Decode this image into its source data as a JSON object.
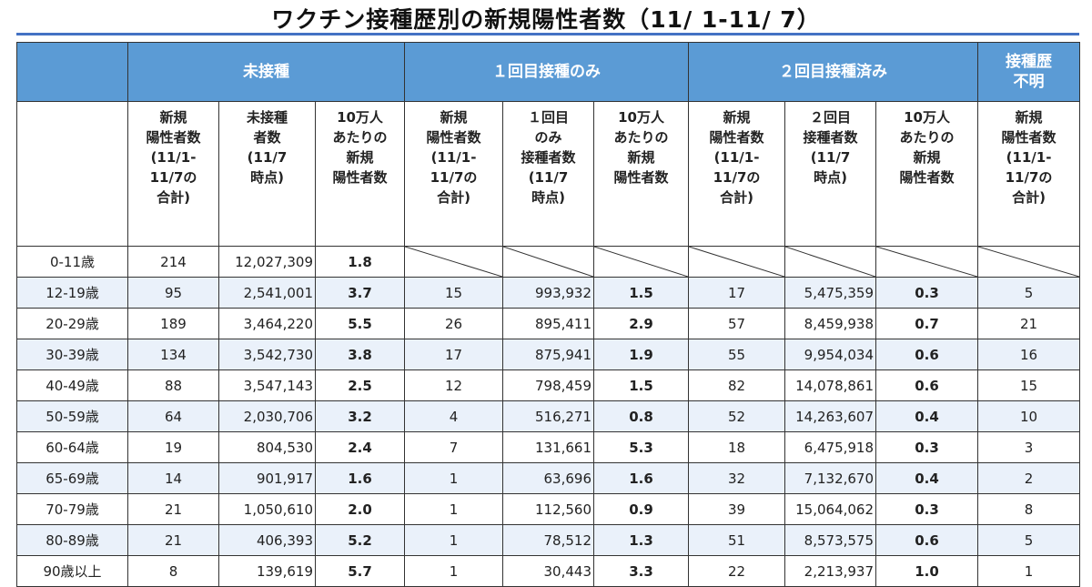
{
  "title": "ワクチン接種歴別の新規陽性者数（11/ 1-11/ 7）",
  "accent_color": "#5b9bd5",
  "groups": [
    "未接種",
    "１回目接種のみ",
    "２回目接種済み",
    "接種歴\n不明"
  ],
  "subheaders": [
    "新規\n陽性者数\n(11/1-\n11/7の\n合計)",
    "未接種\n者数\n(11/7\n時点)",
    "10万人\nあたりの\n新規\n陽性者数",
    "新規\n陽性者数\n(11/1-\n11/7の\n合計)",
    "１回目\nのみ\n接種者数\n(11/7\n時点)",
    "10万人\nあたりの\n新規\n陽性者数",
    "新規\n陽性者数\n(11/1-\n11/7の\n合計)",
    "２回目\n接種者数\n(11/7\n時点)",
    "10万人\nあたりの\n新規\n陽性者数",
    "新規\n陽性者数\n(11/1-\n11/7の\n合計)"
  ],
  "rows": [
    {
      "age": "0-11歳",
      "u_new": "214",
      "u_pop": "12,027,309",
      "u_rate": "1.8",
      "d1_new": "",
      "d1_pop": "",
      "d1_rate": "",
      "d2_new": "",
      "d2_pop": "",
      "d2_rate": "",
      "unk": ""
    },
    {
      "age": "12-19歳",
      "u_new": "95",
      "u_pop": "2,541,001",
      "u_rate": "3.7",
      "d1_new": "15",
      "d1_pop": "993,932",
      "d1_rate": "1.5",
      "d2_new": "17",
      "d2_pop": "5,475,359",
      "d2_rate": "0.3",
      "unk": "5"
    },
    {
      "age": "20-29歳",
      "u_new": "189",
      "u_pop": "3,464,220",
      "u_rate": "5.5",
      "d1_new": "26",
      "d1_pop": "895,411",
      "d1_rate": "2.9",
      "d2_new": "57",
      "d2_pop": "8,459,938",
      "d2_rate": "0.7",
      "unk": "21"
    },
    {
      "age": "30-39歳",
      "u_new": "134",
      "u_pop": "3,542,730",
      "u_rate": "3.8",
      "d1_new": "17",
      "d1_pop": "875,941",
      "d1_rate": "1.9",
      "d2_new": "55",
      "d2_pop": "9,954,034",
      "d2_rate": "0.6",
      "unk": "16"
    },
    {
      "age": "40-49歳",
      "u_new": "88",
      "u_pop": "3,547,143",
      "u_rate": "2.5",
      "d1_new": "12",
      "d1_pop": "798,459",
      "d1_rate": "1.5",
      "d2_new": "82",
      "d2_pop": "14,078,861",
      "d2_rate": "0.6",
      "unk": "15"
    },
    {
      "age": "50-59歳",
      "u_new": "64",
      "u_pop": "2,030,706",
      "u_rate": "3.2",
      "d1_new": "4",
      "d1_pop": "516,271",
      "d1_rate": "0.8",
      "d2_new": "52",
      "d2_pop": "14,263,607",
      "d2_rate": "0.4",
      "unk": "10"
    },
    {
      "age": "60-64歳",
      "u_new": "19",
      "u_pop": "804,530",
      "u_rate": "2.4",
      "d1_new": "7",
      "d1_pop": "131,661",
      "d1_rate": "5.3",
      "d2_new": "18",
      "d2_pop": "6,475,918",
      "d2_rate": "0.3",
      "unk": "3"
    },
    {
      "age": "65-69歳",
      "u_new": "14",
      "u_pop": "901,917",
      "u_rate": "1.6",
      "d1_new": "1",
      "d1_pop": "63,696",
      "d1_rate": "1.6",
      "d2_new": "32",
      "d2_pop": "7,132,670",
      "d2_rate": "0.4",
      "unk": "2"
    },
    {
      "age": "70-79歳",
      "u_new": "21",
      "u_pop": "1,050,610",
      "u_rate": "2.0",
      "d1_new": "1",
      "d1_pop": "112,560",
      "d1_rate": "0.9",
      "d2_new": "39",
      "d2_pop": "15,064,062",
      "d2_rate": "0.3",
      "unk": "8"
    },
    {
      "age": "80-89歳",
      "u_new": "21",
      "u_pop": "406,393",
      "u_rate": "5.2",
      "d1_new": "1",
      "d1_pop": "78,512",
      "d1_rate": "1.3",
      "d2_new": "51",
      "d2_pop": "8,573,575",
      "d2_rate": "0.6",
      "unk": "5"
    },
    {
      "age": "90歳以上",
      "u_new": "8",
      "u_pop": "139,619",
      "u_rate": "5.7",
      "d1_new": "1",
      "d1_pop": "30,443",
      "d1_rate": "3.3",
      "d2_new": "22",
      "d2_pop": "2,213,937",
      "d2_rate": "1.0",
      "unk": "1"
    }
  ]
}
